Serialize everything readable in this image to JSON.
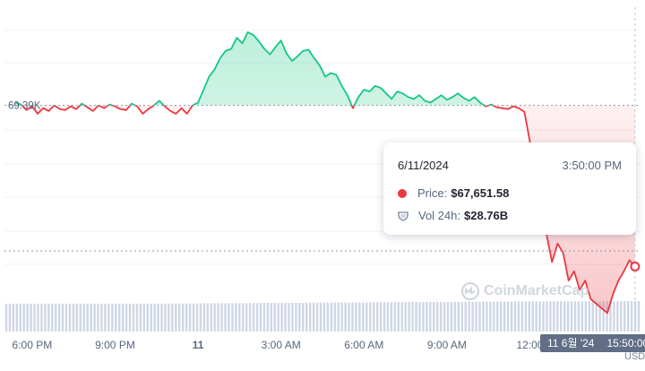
{
  "chart_data": {
    "type": "line",
    "title": "",
    "series": [
      {
        "name": "Price",
        "x": [
          "-6.6",
          "-6.4",
          "-6.2",
          "-6.0",
          "-5.8",
          "-5.6",
          "-5.4",
          "-5.2",
          "-5.0",
          "-4.8",
          "-4.6",
          "-4.4",
          "-4.2",
          "-4.0",
          "-3.8",
          "-3.6",
          "-3.4",
          "-3.2",
          "-3.0",
          "-2.8",
          "-2.6",
          "-2.4",
          "-2.2",
          "-2.0",
          "-1.8",
          "-1.6",
          "-1.4",
          "-1.2",
          "-1.0",
          "-0.8",
          "-0.6",
          "-0.4",
          "-0.2",
          "0.0",
          "0.2",
          "0.4",
          "0.6",
          "0.8",
          "1.0",
          "1.2",
          "1.4",
          "1.6",
          "1.8",
          "2.0",
          "2.2",
          "2.4",
          "2.6",
          "2.8",
          "3.0",
          "3.2",
          "3.4",
          "3.6",
          "3.8",
          "4.0",
          "4.2",
          "4.4",
          "4.6",
          "4.8",
          "5.0",
          "5.2",
          "5.4",
          "5.6",
          "5.8",
          "6.0",
          "6.2",
          "6.4",
          "6.6",
          "6.8",
          "7.0",
          "7.2",
          "7.4",
          "7.6",
          "7.8",
          "8.0",
          "8.2",
          "8.4",
          "8.6",
          "8.8",
          "9.0",
          "9.2",
          "9.4",
          "9.6",
          "9.8",
          "10.0",
          "10.2",
          "10.4",
          "10.6",
          "10.8",
          "11.0",
          "11.2",
          "11.4",
          "11.6",
          "11.8",
          "12.0",
          "12.2",
          "12.4",
          "12.6",
          "12.8",
          "13.0",
          "13.2",
          "13.4",
          "13.6",
          "13.8",
          "14.0",
          "14.2",
          "14.4",
          "14.6",
          "14.8",
          "15.0",
          "15.2",
          "15.4",
          "15.6",
          "15.8"
        ],
        "values": [
          69420,
          69400,
          69340,
          69380,
          69300,
          69360,
          69330,
          69390,
          69350,
          69340,
          69380,
          69350,
          69410,
          69370,
          69330,
          69390,
          69360,
          69400,
          69380,
          69350,
          69340,
          69410,
          69380,
          69300,
          69350,
          69390,
          69440,
          69380,
          69330,
          69300,
          69360,
          69300,
          69390,
          69420,
          69560,
          69700,
          69780,
          69900,
          69980,
          70000,
          70120,
          70060,
          70180,
          70150,
          70080,
          70000,
          69940,
          70020,
          70090,
          69950,
          69870,
          69920,
          69980,
          69990,
          69900,
          69820,
          69700,
          69740,
          69720,
          69600,
          69500,
          69360,
          69480,
          69560,
          69540,
          69600,
          69580,
          69520,
          69460,
          69540,
          69520,
          69480,
          69460,
          69500,
          69440,
          69420,
          69460,
          69500,
          69450,
          69480,
          69520,
          69470,
          69440,
          69480,
          69420,
          69380,
          69400,
          69370,
          69360,
          69350,
          69380,
          69360,
          69320,
          69000,
          68500,
          68200,
          68000,
          67700,
          67900,
          67800,
          67500,
          67600,
          67400,
          67500,
          67300,
          67250,
          67200,
          67150,
          67350,
          67500,
          67600,
          67720,
          67651.58
        ]
      },
      {
        "name": "Vol 24h",
        "values": [
          26.4,
          26.4,
          26.4,
          26.4,
          26.4,
          26.4,
          26.4,
          26.4,
          26.4,
          26.4,
          26.4,
          26.4,
          26.4,
          26.4,
          26.4,
          26.4,
          26.4,
          26.4,
          26.4,
          26.4,
          26.4,
          26.4,
          26.4,
          26.4,
          26.4,
          26.4,
          26.5,
          26.5,
          26.5,
          26.5,
          26.6,
          26.6,
          26.6,
          26.6,
          26.7,
          26.7,
          26.7,
          26.8,
          26.8,
          26.8,
          26.9,
          26.9,
          26.9,
          27.0,
          27.0,
          27.0,
          27.1,
          27.1,
          27.1,
          27.1,
          27.2,
          27.2,
          27.2,
          27.3,
          27.3,
          27.3,
          27.4,
          27.4,
          27.4,
          27.5,
          27.5,
          27.5,
          27.6,
          27.6,
          27.6,
          27.7,
          27.7,
          27.7,
          27.8,
          27.8,
          27.8,
          27.9,
          27.9,
          27.9,
          27.9,
          28.0,
          28.0,
          28.0,
          28.0,
          28.1,
          28.1,
          28.1,
          28.1,
          28.2,
          28.2,
          28.2,
          28.2,
          28.3,
          28.3,
          28.3,
          28.3,
          28.4,
          28.4,
          28.4,
          28.4,
          28.5,
          28.5,
          28.5,
          28.5,
          28.6,
          28.6,
          28.6,
          28.6,
          28.7,
          28.7,
          28.7,
          28.7,
          28.7,
          28.7,
          28.7,
          28.7,
          28.76,
          28.76
        ]
      }
    ],
    "reference": {
      "value": 69390,
      "label": "69.39K"
    },
    "x_ticks": [
      {
        "x": -6,
        "label": "6:00 PM"
      },
      {
        "x": -3,
        "label": "9:00 PM"
      },
      {
        "x": 0,
        "label": "11"
      },
      {
        "x": 3,
        "label": "3:00 AM"
      },
      {
        "x": 6,
        "label": "6:00 AM"
      },
      {
        "x": 9,
        "label": "9:00 AM"
      },
      {
        "x": 12,
        "label": "12:00"
      }
    ],
    "xlim": [
      -7.0,
      16.0
    ],
    "ylim": [
      66950,
      70450
    ],
    "vol_lim": [
      0,
      30.5
    ],
    "colors": {
      "up": "#16c784",
      "down": "#ea3943",
      "reference": "#8d95a5",
      "volume": "#cfd6e4"
    },
    "grid": true,
    "legend": "none"
  },
  "tooltip": {
    "date": "6/11/2024",
    "time": "3:50:00 PM",
    "price_label": "Price:",
    "price_value": "$67,651.58",
    "vol_label": "Vol 24h:",
    "vol_value": "$28.76B",
    "price_color": "#ea3943",
    "icon": "shield-icon"
  },
  "crosshair_badge": {
    "date": "11 6월 '24",
    "time": "15:50:00"
  },
  "watermark": {
    "text": "CoinMarketCap",
    "icon": "coinmarketcap-logo"
  },
  "currency_label": "USD"
}
